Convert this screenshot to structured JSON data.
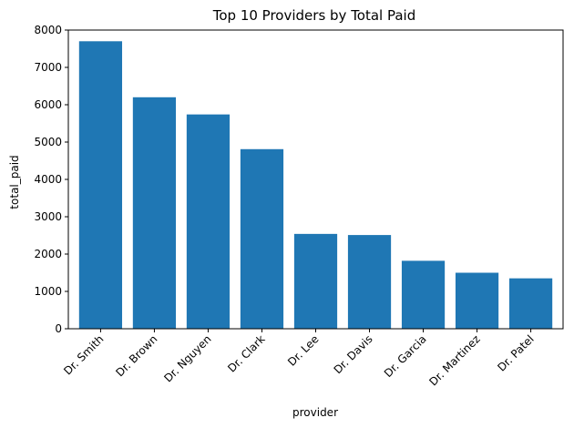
{
  "chart_data": {
    "type": "bar",
    "title": "Top 10 Providers by Total Paid",
    "xlabel": "provider",
    "ylabel": "total_paid",
    "categories": [
      "Dr. Smith",
      "Dr. Brown",
      "Dr. Nguyen",
      "Dr. Clark",
      "Dr. Lee",
      "Dr. Davis",
      "Dr. Garcia",
      "Dr. Martinez",
      "Dr. Patel"
    ],
    "values": [
      7700,
      6200,
      5740,
      4810,
      2540,
      2510,
      1820,
      1500,
      1350
    ],
    "ylim": [
      0,
      8000
    ],
    "yticks": [
      0,
      1000,
      2000,
      3000,
      4000,
      5000,
      6000,
      7000,
      8000
    ],
    "grid": false,
    "bar_color": "#1f77b4"
  }
}
